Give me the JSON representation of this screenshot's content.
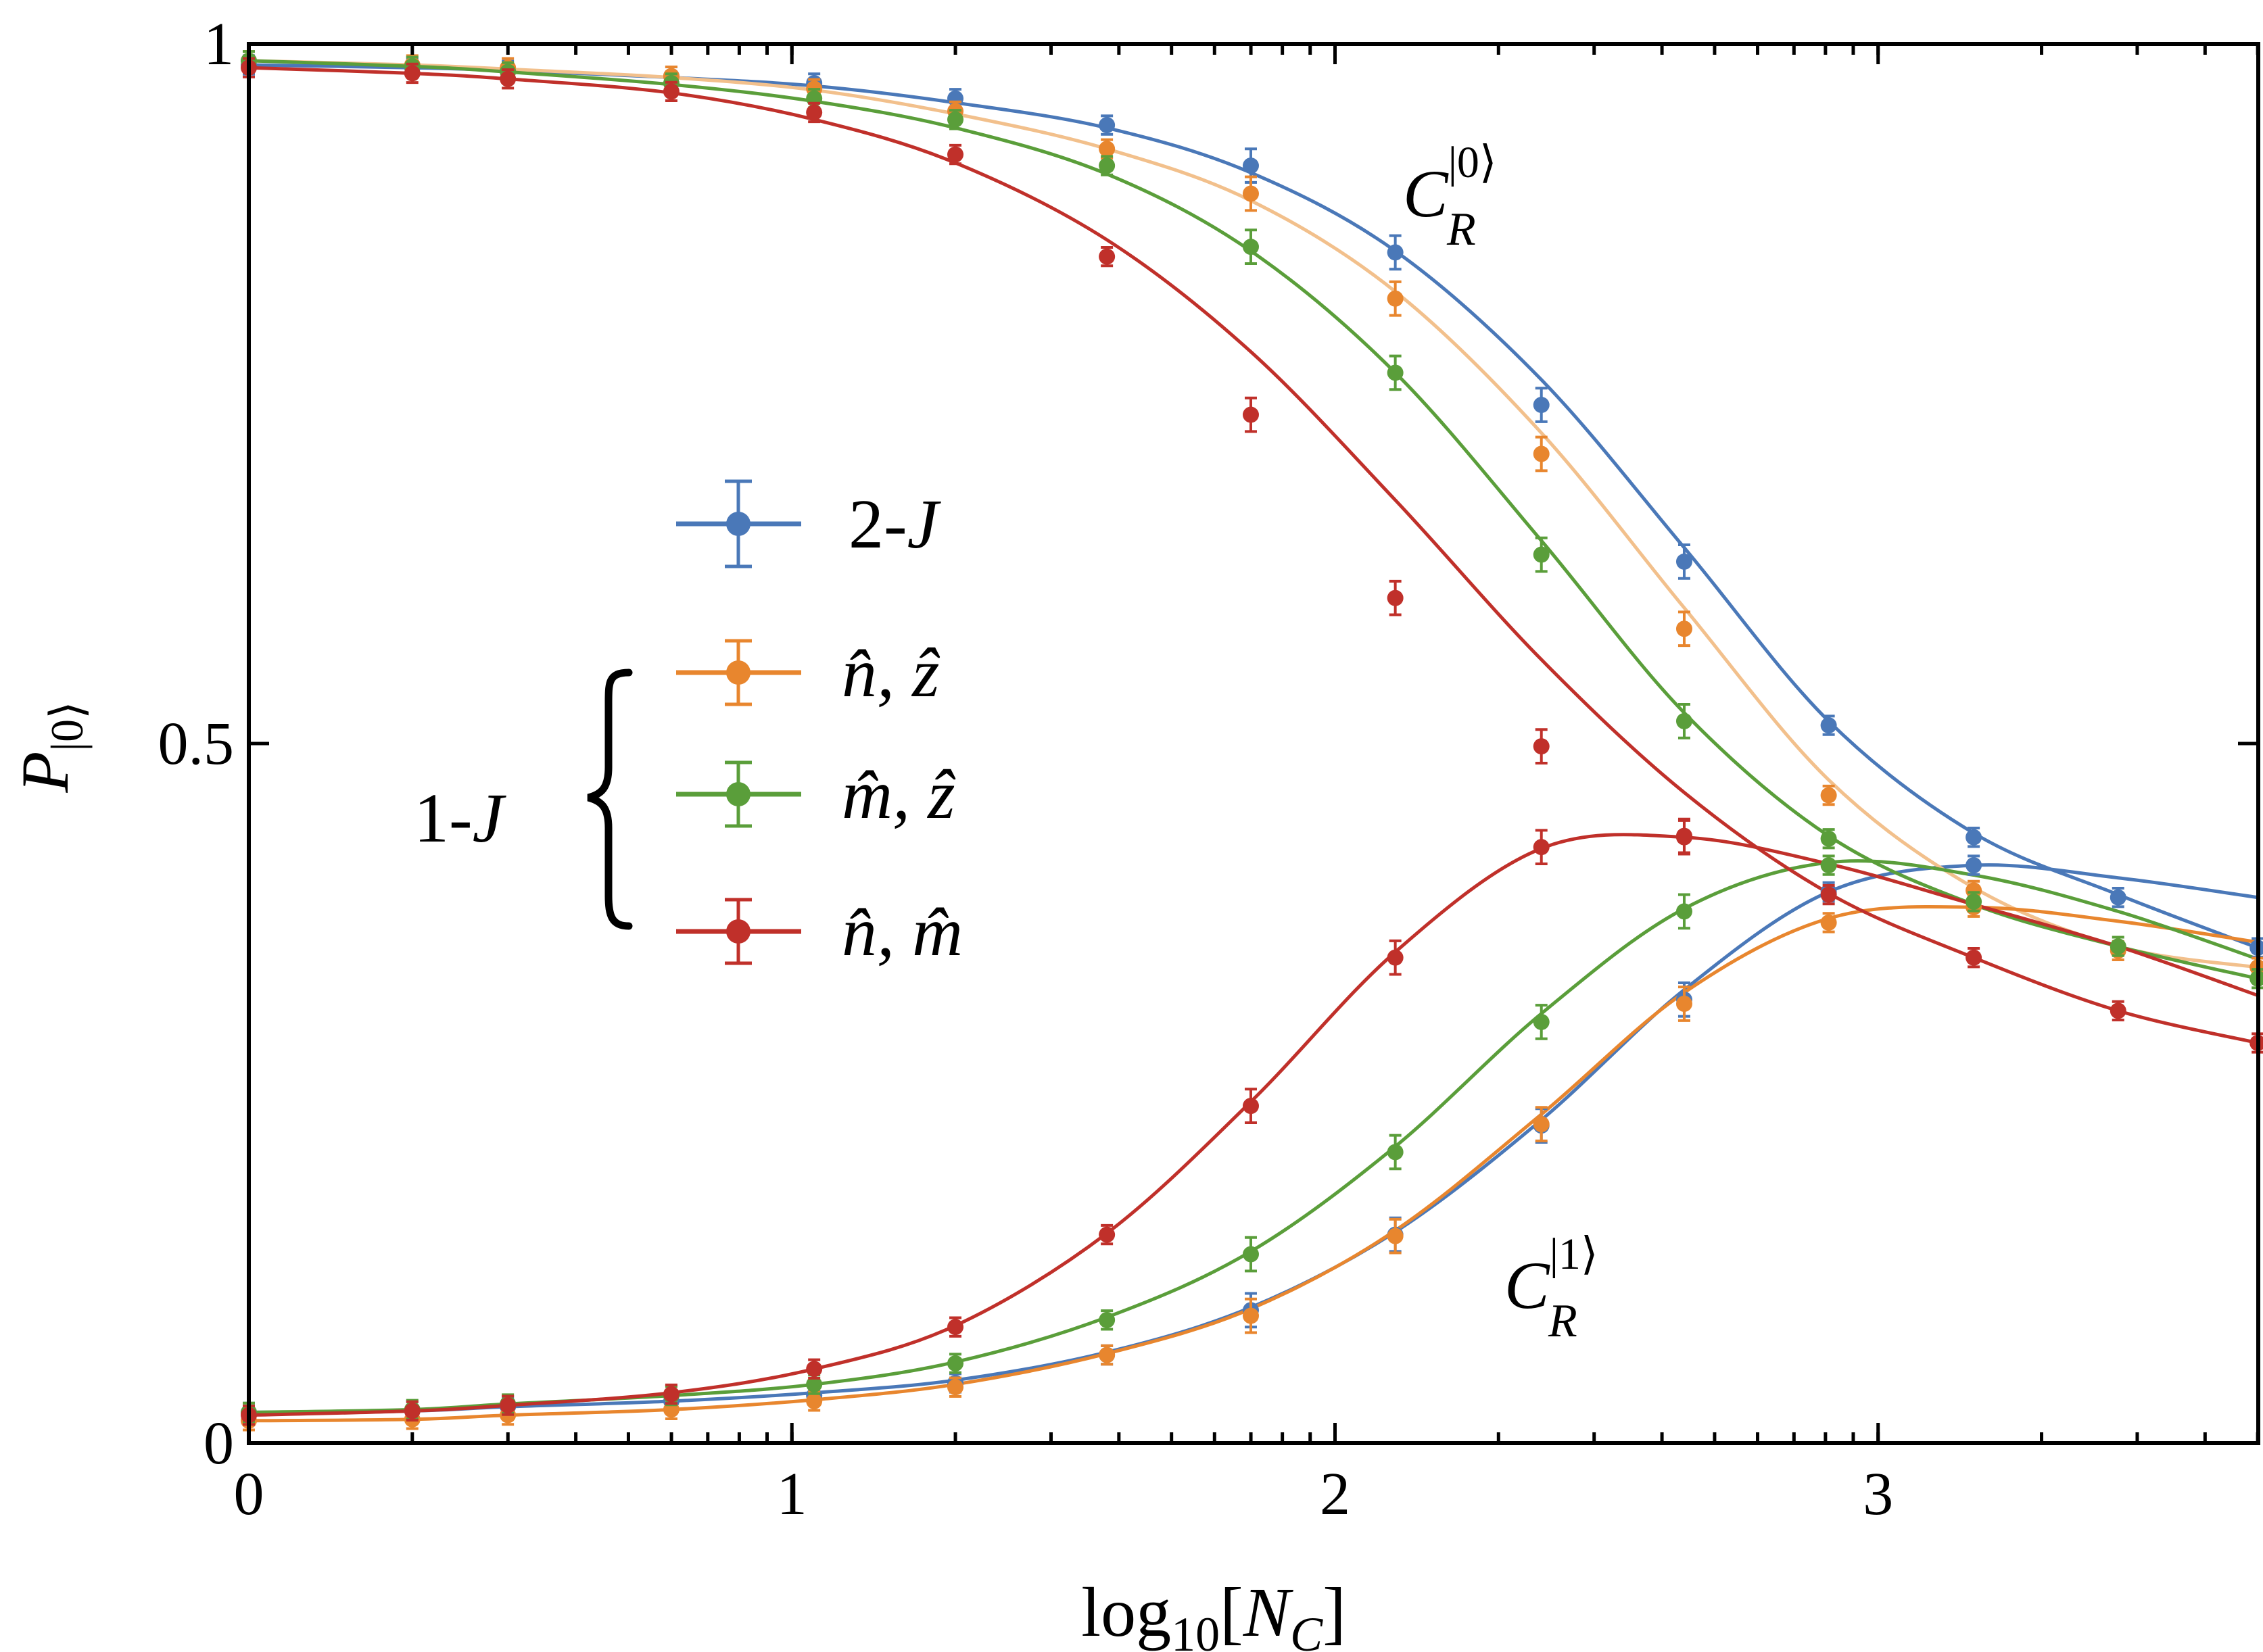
{
  "colors": {
    "blue": "#4a78b8",
    "orange": "#e8862e",
    "orange_light": "#f2c08c",
    "green": "#5a9e3a",
    "red": "#c0302a",
    "axis": "#000000"
  },
  "chart_data": {
    "type": "line",
    "xlabel": "log10[N_C]",
    "ylabel": "P_|0⟩",
    "xlim": [
      0,
      3.7
    ],
    "ylim": [
      0,
      1
    ],
    "xticks": [
      0,
      1,
      2,
      3
    ],
    "xtick_labels": [
      "0",
      "1",
      "2",
      "3"
    ],
    "yticks": [
      0,
      0.5,
      1
    ],
    "ytick_labels": [
      "0",
      "0.5",
      "1"
    ],
    "annotations": {
      "upper": "C_R^|0⟩",
      "lower": "C_R^|1⟩",
      "group": "1-J"
    },
    "legend": {
      "placement": "center-left",
      "entries": [
        "2-J",
        "n̂, ẑ",
        "m̂, ẑ",
        "n̂, m̂"
      ]
    },
    "x": [
      0,
      0.301,
      0.477,
      0.778,
      1.041,
      1.301,
      1.58,
      1.845,
      2.111,
      2.38,
      2.643,
      2.909,
      3.176,
      3.442,
      3.699
    ],
    "series": [
      {
        "name": "2-J",
        "color_key": "blue",
        "upper_points": [
          0.985,
          0.983,
          0.981,
          0.977,
          0.972,
          0.961,
          0.942,
          0.913,
          0.851,
          0.742,
          0.63,
          0.513,
          0.433,
          0.39,
          0.354
        ],
        "lower_points": [
          0.022,
          0.023,
          0.026,
          0.03,
          0.034,
          0.043,
          0.063,
          0.095,
          0.149,
          0.227,
          0.317,
          0.394,
          0.413,
          null,
          null
        ],
        "upper_fit": [
          0.985,
          0.983,
          0.981,
          0.976,
          0.97,
          0.958,
          0.94,
          0.908,
          0.852,
          0.76,
          0.64,
          0.516,
          0.436,
          0.392,
          0.354
        ],
        "lower_fit": [
          0.022,
          0.023,
          0.026,
          0.03,
          0.036,
          0.045,
          0.065,
          0.097,
          0.151,
          0.231,
          0.324,
          0.394,
          0.413,
          0.404,
          0.39
        ]
      },
      {
        "name": "n̂, ẑ",
        "color_key": "orange",
        "upper_points": [
          0.988,
          0.985,
          0.983,
          0.977,
          0.968,
          0.952,
          0.925,
          0.893,
          0.818,
          0.707,
          0.582,
          0.463,
          0.395,
          0.352,
          0.34
        ],
        "lower_points": [
          0.016,
          0.017,
          0.02,
          0.024,
          0.03,
          0.04,
          0.063,
          0.091,
          0.148,
          0.228,
          0.314,
          0.372,
          0.383,
          null,
          null
        ],
        "upper_fit": [
          0.988,
          0.985,
          0.982,
          0.976,
          0.967,
          0.95,
          0.925,
          0.888,
          0.823,
          0.722,
          0.597,
          0.474,
          0.397,
          0.355,
          0.34
        ],
        "lower_fit": [
          0.016,
          0.017,
          0.02,
          0.024,
          0.031,
          0.042,
          0.064,
          0.096,
          0.152,
          0.235,
          0.322,
          0.375,
          0.383,
          0.373,
          0.358
        ]
      },
      {
        "name": "m̂, ẑ",
        "color_key": "green",
        "upper_points": [
          0.988,
          0.984,
          0.98,
          0.972,
          0.961,
          0.946,
          0.913,
          0.855,
          0.765,
          0.635,
          0.516,
          0.432,
          0.387,
          0.355,
          0.332
        ],
        "lower_points": [
          0.022,
          0.024,
          0.028,
          0.034,
          0.042,
          0.057,
          0.088,
          0.135,
          0.208,
          0.301,
          0.38,
          0.413,
          null,
          null,
          null
        ],
        "upper_fit": [
          0.988,
          0.984,
          0.98,
          0.971,
          0.959,
          0.94,
          0.907,
          0.852,
          0.765,
          0.645,
          0.522,
          0.434,
          0.385,
          0.355,
          0.332
        ],
        "lower_fit": [
          0.022,
          0.024,
          0.028,
          0.034,
          0.042,
          0.058,
          0.09,
          0.137,
          0.212,
          0.307,
          0.382,
          0.415,
          0.406,
          0.38,
          0.346
        ]
      },
      {
        "name": "n̂, m̂",
        "color_key": "red",
        "upper_points": [
          0.983,
          0.979,
          0.975,
          0.966,
          0.951,
          0.921,
          0.848,
          0.735,
          0.604,
          0.498,
          0.433,
          0.392,
          0.347,
          0.309,
          0.286
        ],
        "lower_points": [
          0.02,
          0.023,
          0.027,
          0.035,
          0.053,
          0.083,
          0.149,
          0.241,
          0.347,
          0.426,
          0.434,
          null,
          null,
          null,
          null
        ],
        "upper_fit": [
          0.983,
          0.979,
          0.975,
          0.965,
          0.946,
          0.915,
          0.86,
          0.78,
          0.674,
          0.56,
          0.465,
          0.393,
          0.347,
          0.309,
          0.286
        ],
        "lower_fit": [
          0.02,
          0.023,
          0.027,
          0.036,
          0.053,
          0.084,
          0.15,
          0.244,
          0.351,
          0.425,
          0.433,
          0.414,
          0.385,
          0.355,
          0.32
        ]
      }
    ]
  }
}
